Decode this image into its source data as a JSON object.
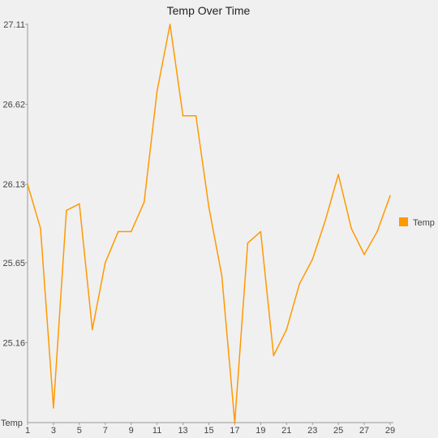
{
  "chart_data": {
    "type": "line",
    "title": "Temp Over Time",
    "y_axis_name": "Temp",
    "x": [
      1,
      2,
      3,
      4,
      5,
      6,
      7,
      8,
      9,
      10,
      11,
      12,
      13,
      14,
      15,
      16,
      17,
      18,
      19,
      20,
      21,
      22,
      23,
      24,
      25,
      26,
      27,
      28,
      29
    ],
    "x_tick_labels": [
      "1",
      "3",
      "5",
      "7",
      "9",
      "11",
      "13",
      "15",
      "17",
      "19",
      "21",
      "23",
      "25",
      "27",
      "29"
    ],
    "y_tick_labels": [
      "27.11",
      "26.62",
      "26.13",
      "25.65",
      "25.16"
    ],
    "ylim": [
      24.67,
      27.11
    ],
    "series": [
      {
        "name": "Temp",
        "color": "#ff9900",
        "values": [
          26.13,
          25.86,
          24.76,
          25.97,
          26.01,
          25.24,
          25.65,
          25.84,
          25.84,
          26.02,
          26.7,
          27.11,
          26.55,
          26.55,
          25.99,
          25.57,
          24.67,
          25.77,
          25.84,
          25.08,
          25.24,
          25.52,
          25.67,
          25.91,
          26.19,
          25.86,
          25.7,
          25.84,
          26.06
        ]
      }
    ],
    "legend_position": "right",
    "grid": false
  }
}
